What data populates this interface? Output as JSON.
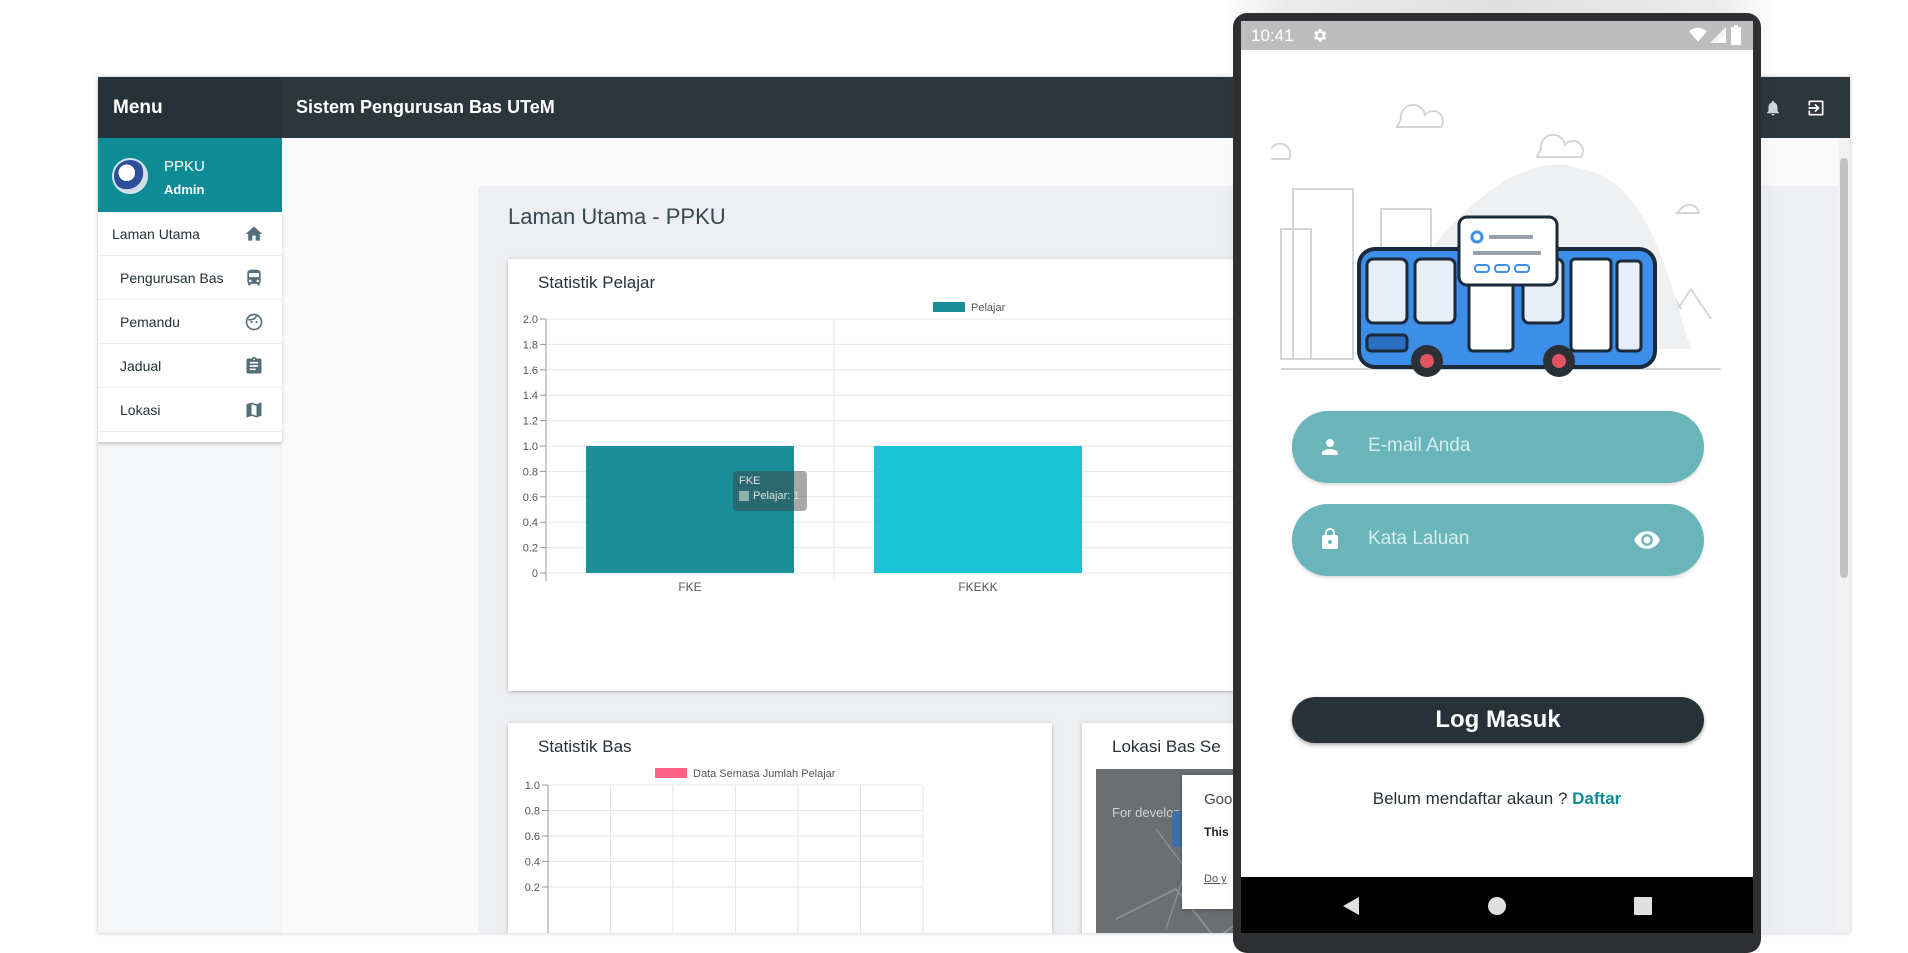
{
  "app": {
    "menu_label": "Menu",
    "title": "Sistem Pengurusan Bas UTeM",
    "user": {
      "name": "PPKU",
      "role": "Admin"
    },
    "nav": [
      {
        "label": "Laman Utama",
        "icon": "home-icon"
      },
      {
        "label": "Pengurusan Bas",
        "icon": "bus-icon"
      },
      {
        "label": "Pemandu",
        "icon": "face-icon"
      },
      {
        "label": "Jadual",
        "icon": "clipboard-icon"
      },
      {
        "label": "Lokasi",
        "icon": "map-icon"
      }
    ],
    "page_title": "Laman Utama - PPKU"
  },
  "student_stats": {
    "title": "Statistik Pelajar",
    "tooltip": {
      "title": "FKE",
      "label": "Pelajar: 1"
    },
    "chart_data": {
      "type": "bar",
      "categories": [
        "FKE",
        "FKEKK"
      ],
      "series": [
        {
          "name": "Pelajar",
          "values": [
            1,
            1
          ]
        }
      ],
      "colors": [
        "#1b8f99",
        "#1bc3d7"
      ],
      "ylim": [
        0,
        2.0
      ],
      "yticks": [
        "2.0",
        "1.8",
        "1.6",
        "1.4",
        "1.2",
        "1.0",
        "0.8",
        "0.6",
        "0.4",
        "0.2",
        "0"
      ],
      "legend": "top"
    }
  },
  "bus_stats": {
    "title": "Statistik Bas",
    "chart_data": {
      "type": "line",
      "series": [
        {
          "name": "Data Semasa Jumlah Pelajar",
          "values": []
        }
      ],
      "color": "#ff6384",
      "yticks": [
        "1.0",
        "0.8",
        "0.6",
        "0.4",
        "0.2"
      ],
      "legend": "top"
    }
  },
  "location_card": {
    "title": "Lokasi Bas Se",
    "map_text": "For develop",
    "dialog_text_1": "Goo",
    "dialog_text_2": "This",
    "dialog_link": "Do y"
  },
  "phone": {
    "time": "10:41",
    "email_placeholder": "E-mail Anda",
    "password_placeholder": "Kata Laluan",
    "login_label": "Log Masuk",
    "register_prompt": "Belum mendaftar akaun ?",
    "register_link": "Daftar",
    "colors": {
      "pill": "#69b5ba",
      "button": "#263238",
      "link": "#0e8c96"
    }
  }
}
